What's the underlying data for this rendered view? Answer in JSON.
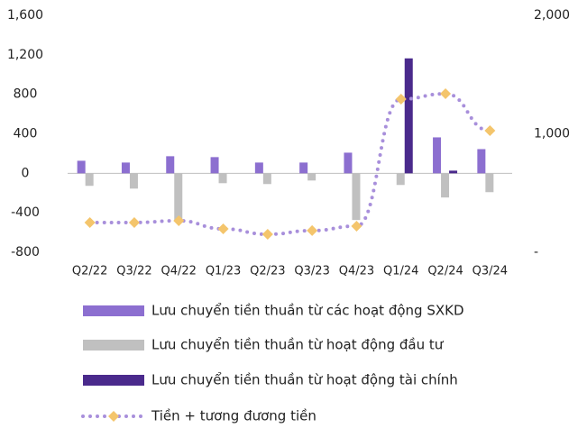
{
  "chart_data": {
    "type": "bar",
    "categories": [
      "Q2/22",
      "Q3/22",
      "Q4/22",
      "Q1/23",
      "Q2/23",
      "Q3/23",
      "Q4/23",
      "Q1/24",
      "Q2/24",
      "Q3/24"
    ],
    "series": [
      {
        "name": "Lưu chuyển tiền thuần từ các hoạt động SXKD",
        "color": "#8c6fd0",
        "type": "bar",
        "values": [
          127,
          109,
          173,
          164,
          109,
          109,
          209,
          0,
          364,
          245
        ]
      },
      {
        "name": "Lưu chuyển tiền thuần từ hoạt động đầu tư",
        "color": "#c0c0c0",
        "type": "bar",
        "values": [
          -127,
          -155,
          -482,
          -100,
          -109,
          -73,
          -473,
          -118,
          -245,
          -191
        ]
      },
      {
        "name": "Lưu chuyển tiền thuần từ hoạt động tài chính",
        "color": "#4a2a8c",
        "type": "bar",
        "values": [
          0,
          0,
          0,
          0,
          0,
          0,
          0,
          1164,
          27,
          0
        ]
      },
      {
        "name": "Tiền + tương đương tiền",
        "color": "#a88fdb",
        "marker_color": "#f4c56c",
        "type": "line",
        "axis": "y2",
        "values": [
          251,
          251,
          266,
          198,
          152,
          183,
          221,
          1293,
          1338,
          1027
        ]
      }
    ],
    "ylim": [
      -800,
      1600
    ],
    "yticks": [
      {
        "value": -800,
        "label": "-800"
      },
      {
        "value": -400,
        "label": "-400"
      },
      0,
      400,
      800,
      {
        "value": 1200,
        "label": "1,200"
      },
      {
        "value": 1600,
        "label": "1,600"
      }
    ],
    "y2lim": [
      0,
      2000
    ],
    "y2ticks": [
      {
        "value": 0,
        "label": "-"
      },
      {
        "value": 1000,
        "label": "1,000"
      },
      {
        "value": 2000,
        "label": "2,000"
      }
    ],
    "grid": false
  }
}
